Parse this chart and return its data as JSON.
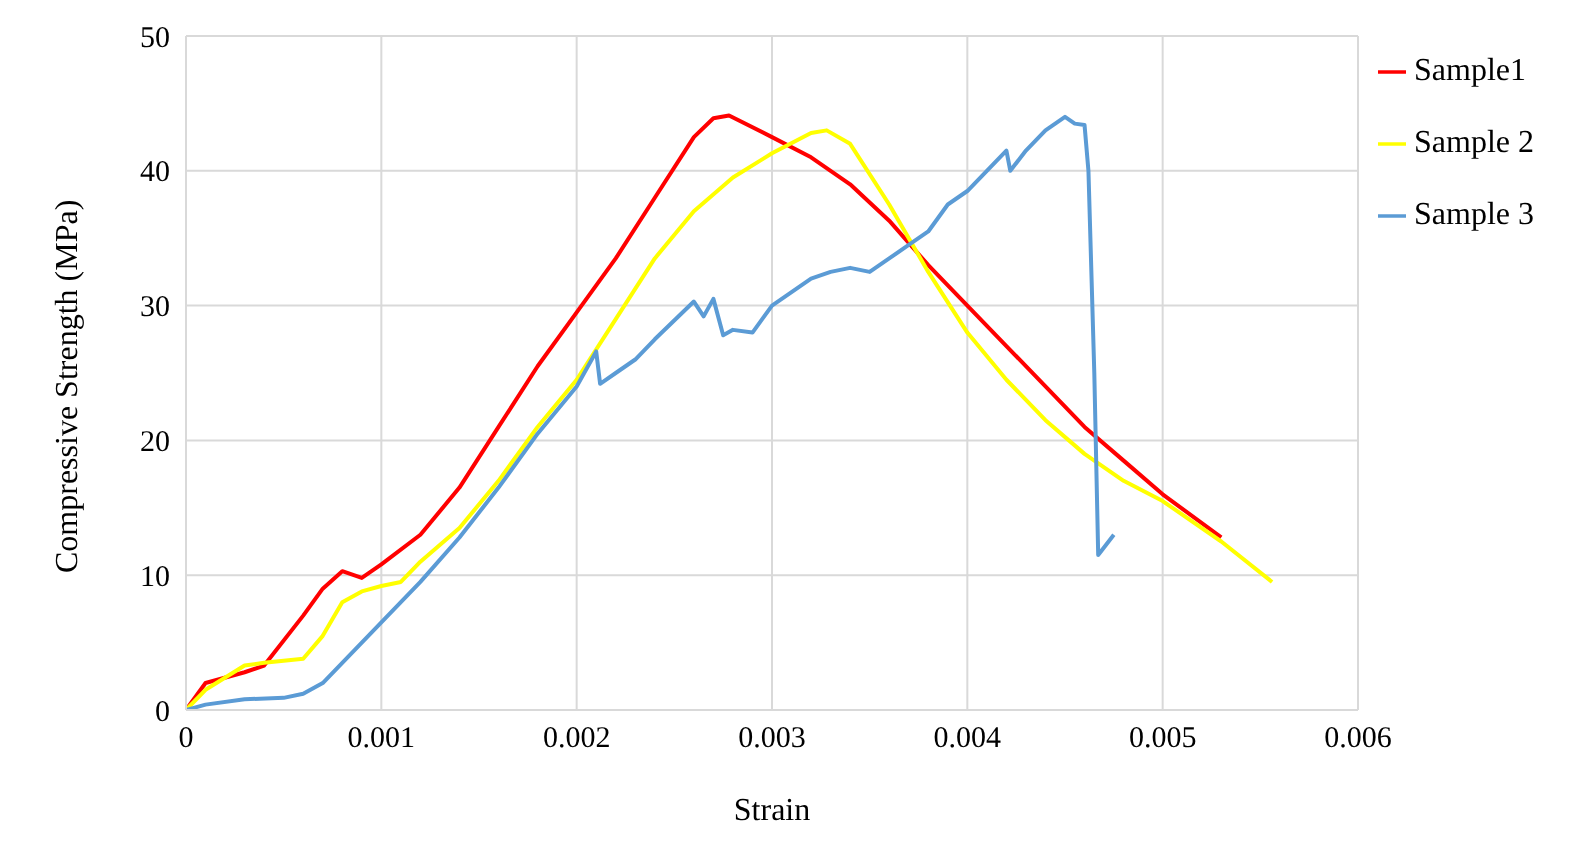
{
  "chart_data": {
    "type": "line",
    "xlabel": "Strain",
    "ylabel": "Compressive Strength (MPa)",
    "xlim": [
      0,
      0.006
    ],
    "xticks": [
      0,
      0.001,
      0.002,
      0.003,
      0.004,
      0.005,
      0.006
    ],
    "ylim": [
      0,
      50
    ],
    "yticks": [
      0,
      10,
      20,
      30,
      40,
      50
    ],
    "grid": true,
    "legend": "right",
    "marker": "none",
    "line_style": "solid",
    "series": [
      {
        "name": "Sample1",
        "color": "#ff0000",
        "x": [
          0,
          0.0001,
          0.0003,
          0.0004,
          0.0006,
          0.0007,
          0.0008,
          0.0009,
          0.001,
          0.0012,
          0.0014,
          0.0016,
          0.0018,
          0.002,
          0.0022,
          0.0024,
          0.0026,
          0.0027,
          0.00278,
          0.003,
          0.0032,
          0.0034,
          0.0036,
          0.0038,
          0.004,
          0.0042,
          0.0044,
          0.0046,
          0.0048,
          0.005,
          0.0053
        ],
        "values": [
          0,
          2,
          2.8,
          3.3,
          7,
          9,
          10.3,
          9.8,
          10.8,
          13,
          16.5,
          21,
          25.5,
          29.5,
          33.5,
          38,
          42.5,
          43.9,
          44.1,
          42.5,
          41,
          39,
          36.3,
          33,
          30,
          27,
          24,
          21,
          18.5,
          16,
          12.8
        ]
      },
      {
        "name": "Sample 2",
        "color": "#ffff00",
        "x": [
          0,
          0.0001,
          0.0003,
          0.0004,
          0.0006,
          0.0007,
          0.0008,
          0.0009,
          0.001,
          0.0011,
          0.0012,
          0.0014,
          0.0016,
          0.0018,
          0.002,
          0.0022,
          0.0024,
          0.0026,
          0.0028,
          0.003,
          0.0032,
          0.00328,
          0.0034,
          0.0036,
          0.0038,
          0.004,
          0.0042,
          0.0044,
          0.0046,
          0.0048,
          0.005,
          0.0053,
          0.00556
        ],
        "values": [
          0,
          1.5,
          3.3,
          3.5,
          3.8,
          5.5,
          8,
          8.8,
          9.2,
          9.5,
          11,
          13.5,
          17,
          21,
          24.5,
          29,
          33.5,
          37,
          39.5,
          41.3,
          42.8,
          43,
          42,
          37.5,
          32.5,
          28,
          24.5,
          21.5,
          19,
          17,
          15.5,
          12.5,
          9.5
        ]
      },
      {
        "name": "Sample 3",
        "color": "#5b9bd5",
        "x": [
          0,
          0.0001,
          0.0003,
          0.0005,
          0.0006,
          0.0007,
          0.0008,
          0.0009,
          0.001,
          0.0012,
          0.0014,
          0.0016,
          0.0018,
          0.002,
          0.0021,
          0.00212,
          0.0022,
          0.0023,
          0.0024,
          0.0026,
          0.00265,
          0.0027,
          0.00275,
          0.0028,
          0.0029,
          0.003,
          0.0031,
          0.0032,
          0.0033,
          0.0034,
          0.0035,
          0.0036,
          0.0037,
          0.0038,
          0.0039,
          0.004,
          0.0041,
          0.0042,
          0.00422,
          0.0043,
          0.0044,
          0.0045,
          0.00455,
          0.0046,
          0.00462,
          0.00465,
          0.00467,
          0.00475
        ],
        "values": [
          0,
          0.4,
          0.8,
          0.9,
          1.2,
          2,
          3.5,
          5,
          6.5,
          9.5,
          12.8,
          16.5,
          20.5,
          24,
          26.6,
          24.2,
          25,
          26,
          27.5,
          30.3,
          29.2,
          30.5,
          27.8,
          28.2,
          28,
          30,
          31,
          32,
          32.5,
          32.8,
          32.5,
          33.5,
          34.5,
          35.5,
          37.5,
          38.5,
          40,
          41.5,
          40,
          41.5,
          43,
          44,
          43.5,
          43.4,
          40,
          25,
          11.5,
          13
        ]
      }
    ]
  }
}
